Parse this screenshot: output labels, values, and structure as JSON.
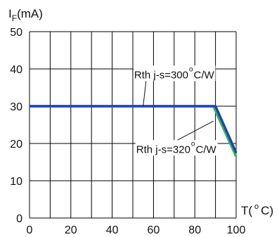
{
  "chart_data": {
    "type": "line",
    "ylabel_main": "I",
    "ylabel_sub": "F",
    "ylabel_unit": "(mA)",
    "xlabel_prefix": "T(",
    "xlabel_degree": "o",
    "xlabel_suffix": "C)",
    "xlim": [
      0,
      100
    ],
    "ylim": [
      0,
      50
    ],
    "x_ticks": [
      0,
      20,
      40,
      60,
      80,
      100
    ],
    "y_ticks": [
      0,
      10,
      20,
      30,
      40,
      50
    ],
    "grid": true,
    "series": [
      {
        "color": "#2040c8",
        "points": [
          [
            0,
            30
          ],
          [
            90,
            30
          ],
          [
            100,
            17.5
          ]
        ]
      },
      {
        "color": "#30c040",
        "points": [
          [
            0,
            30
          ],
          [
            89,
            30
          ],
          [
            100,
            16.5
          ]
        ]
      }
    ],
    "annotations": [
      {
        "label_a": "Rth j-s=300",
        "degree": "o",
        "label_b": "C/W",
        "x": 70,
        "y": 37.5,
        "pointer_to": [
          55,
          30
        ]
      },
      {
        "label_a": "Rth j-s=320",
        "degree": "o",
        "label_b": "C/W",
        "x": 71,
        "y": 17.5,
        "pointer_to": [
          89,
          26
        ]
      }
    ],
    "colors": {
      "grid": "#000000",
      "series_300": "#2040c8",
      "series_320": "#30c040"
    }
  }
}
